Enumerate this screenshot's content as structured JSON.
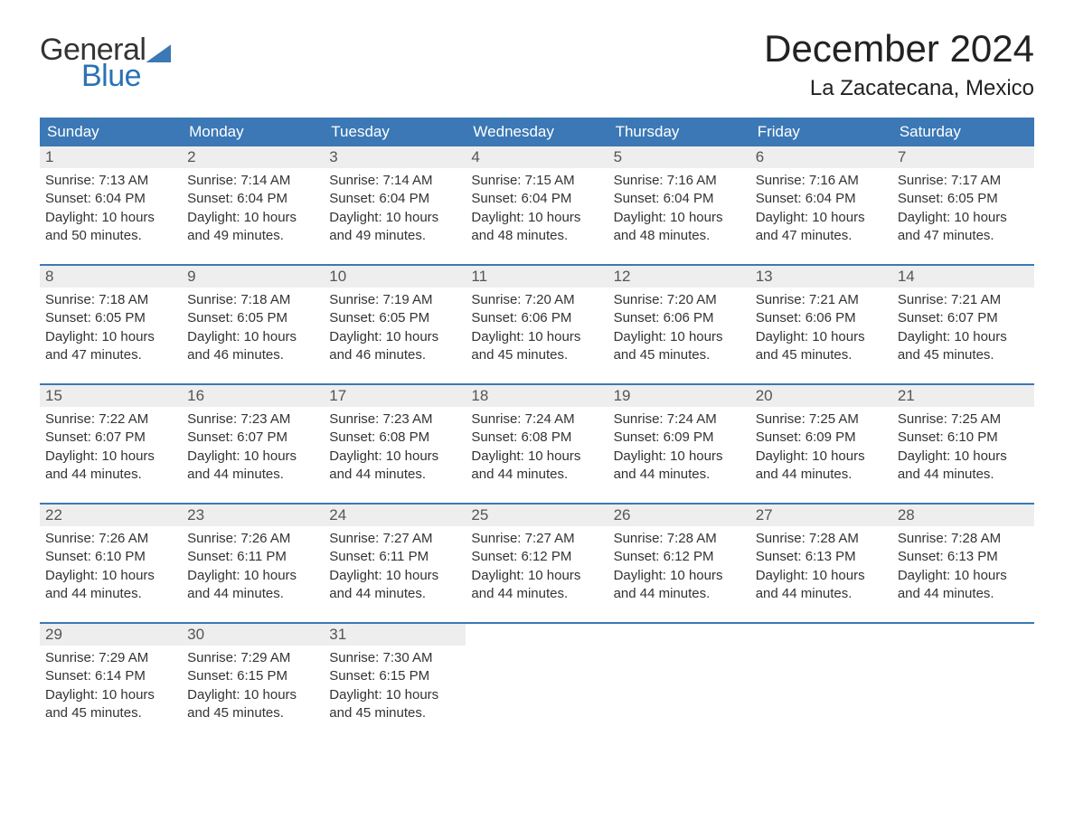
{
  "logo": {
    "top": "General",
    "bottom": "Blue"
  },
  "title": "December 2024",
  "location": "La Zacatecana, Mexico",
  "colors": {
    "header_bg": "#3b78b5",
    "header_text": "#ffffff",
    "daynum_bg": "#eeeeee",
    "week_border": "#3b78b5",
    "logo_blue": "#2a72b5",
    "body_text": "#333333",
    "background": "#ffffff"
  },
  "day_headers": [
    "Sunday",
    "Monday",
    "Tuesday",
    "Wednesday",
    "Thursday",
    "Friday",
    "Saturday"
  ],
  "weeks": [
    [
      {
        "n": "1",
        "sr": "Sunrise: 7:13 AM",
        "ss": "Sunset: 6:04 PM",
        "d1": "Daylight: 10 hours",
        "d2": "and 50 minutes."
      },
      {
        "n": "2",
        "sr": "Sunrise: 7:14 AM",
        "ss": "Sunset: 6:04 PM",
        "d1": "Daylight: 10 hours",
        "d2": "and 49 minutes."
      },
      {
        "n": "3",
        "sr": "Sunrise: 7:14 AM",
        "ss": "Sunset: 6:04 PM",
        "d1": "Daylight: 10 hours",
        "d2": "and 49 minutes."
      },
      {
        "n": "4",
        "sr": "Sunrise: 7:15 AM",
        "ss": "Sunset: 6:04 PM",
        "d1": "Daylight: 10 hours",
        "d2": "and 48 minutes."
      },
      {
        "n": "5",
        "sr": "Sunrise: 7:16 AM",
        "ss": "Sunset: 6:04 PM",
        "d1": "Daylight: 10 hours",
        "d2": "and 48 minutes."
      },
      {
        "n": "6",
        "sr": "Sunrise: 7:16 AM",
        "ss": "Sunset: 6:04 PM",
        "d1": "Daylight: 10 hours",
        "d2": "and 47 minutes."
      },
      {
        "n": "7",
        "sr": "Sunrise: 7:17 AM",
        "ss": "Sunset: 6:05 PM",
        "d1": "Daylight: 10 hours",
        "d2": "and 47 minutes."
      }
    ],
    [
      {
        "n": "8",
        "sr": "Sunrise: 7:18 AM",
        "ss": "Sunset: 6:05 PM",
        "d1": "Daylight: 10 hours",
        "d2": "and 47 minutes."
      },
      {
        "n": "9",
        "sr": "Sunrise: 7:18 AM",
        "ss": "Sunset: 6:05 PM",
        "d1": "Daylight: 10 hours",
        "d2": "and 46 minutes."
      },
      {
        "n": "10",
        "sr": "Sunrise: 7:19 AM",
        "ss": "Sunset: 6:05 PM",
        "d1": "Daylight: 10 hours",
        "d2": "and 46 minutes."
      },
      {
        "n": "11",
        "sr": "Sunrise: 7:20 AM",
        "ss": "Sunset: 6:06 PM",
        "d1": "Daylight: 10 hours",
        "d2": "and 45 minutes."
      },
      {
        "n": "12",
        "sr": "Sunrise: 7:20 AM",
        "ss": "Sunset: 6:06 PM",
        "d1": "Daylight: 10 hours",
        "d2": "and 45 minutes."
      },
      {
        "n": "13",
        "sr": "Sunrise: 7:21 AM",
        "ss": "Sunset: 6:06 PM",
        "d1": "Daylight: 10 hours",
        "d2": "and 45 minutes."
      },
      {
        "n": "14",
        "sr": "Sunrise: 7:21 AM",
        "ss": "Sunset: 6:07 PM",
        "d1": "Daylight: 10 hours",
        "d2": "and 45 minutes."
      }
    ],
    [
      {
        "n": "15",
        "sr": "Sunrise: 7:22 AM",
        "ss": "Sunset: 6:07 PM",
        "d1": "Daylight: 10 hours",
        "d2": "and 44 minutes."
      },
      {
        "n": "16",
        "sr": "Sunrise: 7:23 AM",
        "ss": "Sunset: 6:07 PM",
        "d1": "Daylight: 10 hours",
        "d2": "and 44 minutes."
      },
      {
        "n": "17",
        "sr": "Sunrise: 7:23 AM",
        "ss": "Sunset: 6:08 PM",
        "d1": "Daylight: 10 hours",
        "d2": "and 44 minutes."
      },
      {
        "n": "18",
        "sr": "Sunrise: 7:24 AM",
        "ss": "Sunset: 6:08 PM",
        "d1": "Daylight: 10 hours",
        "d2": "and 44 minutes."
      },
      {
        "n": "19",
        "sr": "Sunrise: 7:24 AM",
        "ss": "Sunset: 6:09 PM",
        "d1": "Daylight: 10 hours",
        "d2": "and 44 minutes."
      },
      {
        "n": "20",
        "sr": "Sunrise: 7:25 AM",
        "ss": "Sunset: 6:09 PM",
        "d1": "Daylight: 10 hours",
        "d2": "and 44 minutes."
      },
      {
        "n": "21",
        "sr": "Sunrise: 7:25 AM",
        "ss": "Sunset: 6:10 PM",
        "d1": "Daylight: 10 hours",
        "d2": "and 44 minutes."
      }
    ],
    [
      {
        "n": "22",
        "sr": "Sunrise: 7:26 AM",
        "ss": "Sunset: 6:10 PM",
        "d1": "Daylight: 10 hours",
        "d2": "and 44 minutes."
      },
      {
        "n": "23",
        "sr": "Sunrise: 7:26 AM",
        "ss": "Sunset: 6:11 PM",
        "d1": "Daylight: 10 hours",
        "d2": "and 44 minutes."
      },
      {
        "n": "24",
        "sr": "Sunrise: 7:27 AM",
        "ss": "Sunset: 6:11 PM",
        "d1": "Daylight: 10 hours",
        "d2": "and 44 minutes."
      },
      {
        "n": "25",
        "sr": "Sunrise: 7:27 AM",
        "ss": "Sunset: 6:12 PM",
        "d1": "Daylight: 10 hours",
        "d2": "and 44 minutes."
      },
      {
        "n": "26",
        "sr": "Sunrise: 7:28 AM",
        "ss": "Sunset: 6:12 PM",
        "d1": "Daylight: 10 hours",
        "d2": "and 44 minutes."
      },
      {
        "n": "27",
        "sr": "Sunrise: 7:28 AM",
        "ss": "Sunset: 6:13 PM",
        "d1": "Daylight: 10 hours",
        "d2": "and 44 minutes."
      },
      {
        "n": "28",
        "sr": "Sunrise: 7:28 AM",
        "ss": "Sunset: 6:13 PM",
        "d1": "Daylight: 10 hours",
        "d2": "and 44 minutes."
      }
    ],
    [
      {
        "n": "29",
        "sr": "Sunrise: 7:29 AM",
        "ss": "Sunset: 6:14 PM",
        "d1": "Daylight: 10 hours",
        "d2": "and 45 minutes."
      },
      {
        "n": "30",
        "sr": "Sunrise: 7:29 AM",
        "ss": "Sunset: 6:15 PM",
        "d1": "Daylight: 10 hours",
        "d2": "and 45 minutes."
      },
      {
        "n": "31",
        "sr": "Sunrise: 7:30 AM",
        "ss": "Sunset: 6:15 PM",
        "d1": "Daylight: 10 hours",
        "d2": "and 45 minutes."
      },
      null,
      null,
      null,
      null
    ]
  ]
}
